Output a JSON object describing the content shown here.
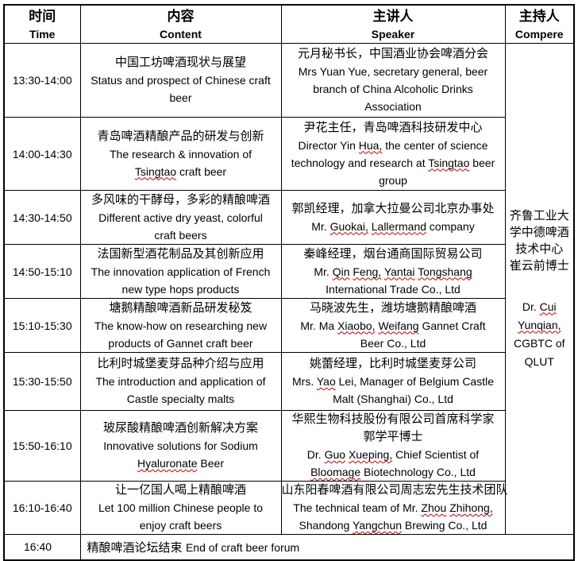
{
  "header": {
    "columns": [
      {
        "zh": "时间",
        "en": "Time"
      },
      {
        "zh": "内容",
        "en": "Content"
      },
      {
        "zh": "主讲人",
        "en": "Speaker"
      },
      {
        "zh": "主持人",
        "en": "Compere"
      }
    ]
  },
  "sessions": [
    {
      "time": "13:30-14:00",
      "content_lines": [
        "中国工坊啤酒现状与展望",
        "Status and prospect of Chinese craft",
        "beer"
      ],
      "speaker_lines": [
        "元月秘书长，中国酒业协会啤酒分会",
        "Mrs Yuan Yue, secretary general, beer",
        "branch of China Alcoholic Drinks",
        "Association"
      ]
    },
    {
      "time": "14:00-14:30",
      "content_lines": [
        "青岛啤酒精酿产品的研发与创新",
        "The research & innovation of",
        "Tsingtao craft beer"
      ],
      "speaker_lines": [
        "尹花主任，青岛啤酒科技研发中心",
        "Director Yin Hua, the center of science",
        "technology and research at Tsingtao beer",
        "group"
      ]
    },
    {
      "time": "14:30-14:50",
      "content_lines": [
        "多风味的干酵母，多彩的精酿啤酒",
        "Different active dry yeast, colorful",
        "craft beers"
      ],
      "speaker_lines": [
        "郭凯经理，加拿大拉曼公司北京办事处",
        "Mr. Guokai, Lallermand company"
      ]
    },
    {
      "time": "14:50-15:10",
      "content_lines": [
        "法国新型酒花制品及其创新应用",
        "The innovation application of French",
        "new type hops products"
      ],
      "speaker_lines": [
        "秦峰经理，烟台通商国际贸易公司",
        "Mr. Qin Feng, Yantai Tongshang",
        "International Trade Co., Ltd"
      ]
    },
    {
      "time": "15:10-15:30",
      "content_lines": [
        "塘鹅精酿啤酒新品研发秘笈",
        "The know-how on researching new",
        "products of Gannet craft beer"
      ],
      "speaker_lines": [
        "马晓波先生，潍坊塘鹅精酿啤酒",
        "Mr. Ma Xiaobo, Weifang Gannet Craft",
        "Beer Co., Ltd"
      ]
    },
    {
      "time": "15:30-15:50",
      "content_lines": [
        "比利时城堡麦芽品种介绍与应用",
        "The introduction and application of",
        "Castle specialty malts"
      ],
      "speaker_lines": [
        "姚蕾经理，比利时城堡麦芽公司",
        "Mrs. Yao Lei, Manager of Belgium Castle",
        "Malt (Shanghai) Co., Ltd"
      ]
    },
    {
      "time": "15:50-16:10",
      "content_lines": [
        "玻尿酸精酿啤酒创新解决方案",
        "Innovative solutions for Sodium",
        "Hyaluronate Beer"
      ],
      "speaker_lines": [
        "华熙生物科技股份有限公司首席科学家",
        "郭学平博士",
        "Dr. Guo Xueping, Chief Scientist of",
        "Bloomage Biotechnology Co., Ltd"
      ]
    },
    {
      "time": "16:10-16:40",
      "content_lines": [
        "让一亿国人喝上精酿啤酒",
        "Let 100 million Chinese people to",
        "enjoy craft beers"
      ],
      "speaker_lines": [
        "山东阳春啤酒有限公司周志宏先生技术团队",
        "The technical team of Mr. Zhou Zhihong,",
        "Shandong Yangchun Brewing Co., Ltd"
      ]
    }
  ],
  "compere": {
    "zh_lines": [
      "齐鲁工业大",
      "学中德啤酒",
      "技术中心",
      "崔云前博士"
    ],
    "en_lines": [
      "Dr. Cui",
      "Yunqian,",
      "CGBTC of",
      "QLUT"
    ]
  },
  "footer": {
    "time": "16:40",
    "zh": "精酿啤酒论坛结束",
    "en": "End of craft beer forum"
  },
  "spellcheck": {
    "underline_color": "#c00000",
    "misspelled_words": [
      "Tsingtao",
      "Hua,",
      "Guokai,",
      "Lallermand",
      "Qin",
      "Feng,",
      "Yantai",
      "Tongshang",
      "Xiaobo,",
      "Weifang",
      "Yao",
      "Hyaluronate",
      "Guo",
      "Xueping,",
      "Bloomage",
      "Zhou",
      "Zhihong,",
      "Yangchun",
      "Cui",
      "Yunqian,"
    ]
  },
  "colors": {
    "border": "#000000",
    "text": "#000000",
    "background": "#ffffff",
    "spell_underline": "#c00000"
  }
}
